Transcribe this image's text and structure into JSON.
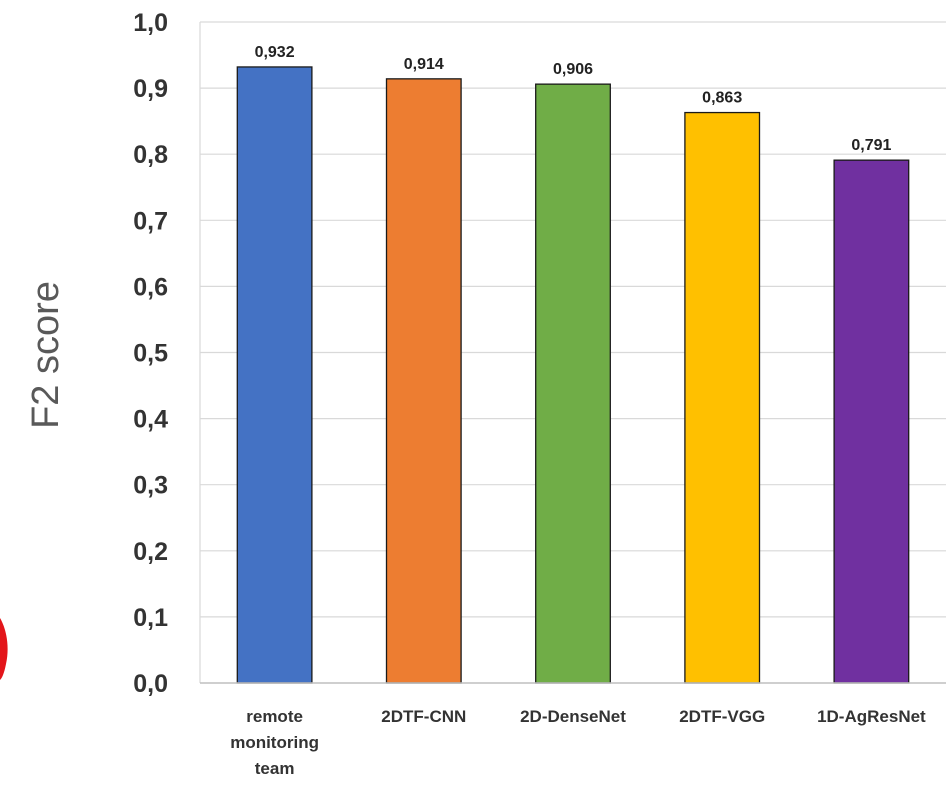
{
  "chart_data": {
    "type": "bar",
    "categories": [
      [
        "remote",
        "monitoring",
        "team"
      ],
      [
        "2DTF-CNN"
      ],
      [
        "2D-DenseNet"
      ],
      [
        "2DTF-VGG"
      ],
      [
        "1D-AgResNet"
      ]
    ],
    "values": [
      0.932,
      0.914,
      0.906,
      0.863,
      0.791
    ],
    "value_labels": [
      "0,932",
      "0,914",
      "0,906",
      "0,863",
      "0,791"
    ],
    "colors": [
      "#4472C4",
      "#ED7D31",
      "#70AD47",
      "#FFC000",
      "#7030A0"
    ],
    "ylabel": "F2 score",
    "ylim": [
      0,
      1
    ],
    "yticks": [
      "0,0",
      "0,1",
      "0,2",
      "0,3",
      "0,4",
      "0,5",
      "0,6",
      "0,7",
      "0,8",
      "0,9",
      "1,0"
    ],
    "grid": true
  },
  "decor": {
    "fragment_color": "#E3151A"
  }
}
